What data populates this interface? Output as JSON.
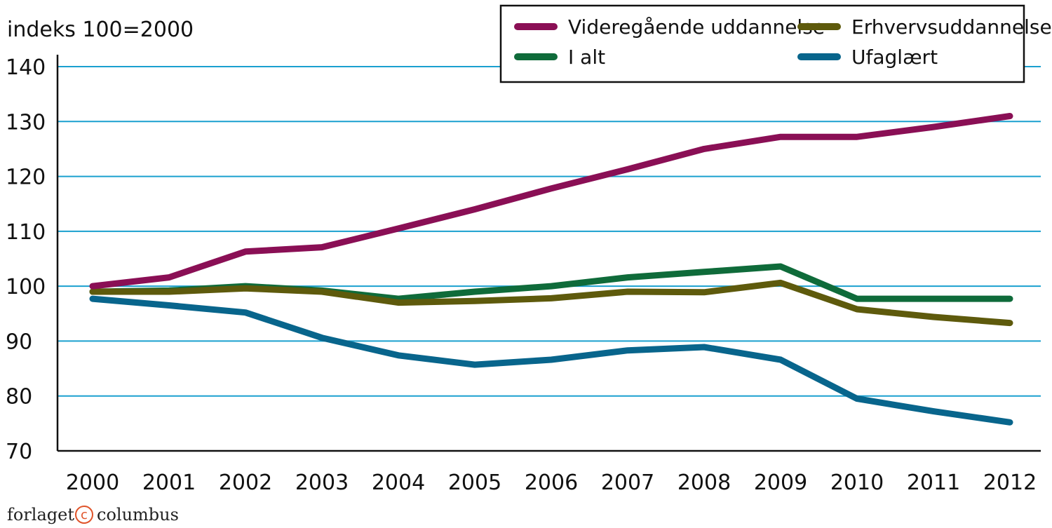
{
  "chart_data": {
    "type": "line",
    "y_unit_label": "indeks 100=2000",
    "x": [
      "2000",
      "2001",
      "2002",
      "2003",
      "2004",
      "2005",
      "2006",
      "2007",
      "2008",
      "2009",
      "2010",
      "2011",
      "2012"
    ],
    "ylim": [
      70,
      140
    ],
    "yticks": [
      "70",
      "80",
      "90",
      "100",
      "110",
      "120",
      "130",
      "140"
    ],
    "grid": true,
    "legend_position": "top-right",
    "series": [
      {
        "name": "Videregående uddannelse",
        "color": "#8a0f55",
        "values": [
          100,
          101.6,
          106.3,
          107.1,
          110.5,
          114,
          117.8,
          121.3,
          125,
          127.2,
          127.2,
          129,
          131
        ]
      },
      {
        "name": "I alt",
        "color": "#0f6b3a",
        "values": [
          99,
          99.2,
          100,
          99.2,
          97.7,
          99,
          100,
          101.6,
          102.6,
          103.6,
          97.7,
          97.7,
          97.7
        ]
      },
      {
        "name": "Erhvervsuddannelse",
        "color": "#5e5a0c",
        "values": [
          99,
          99,
          99.6,
          99,
          97,
          97.3,
          97.8,
          99,
          98.9,
          100.6,
          95.8,
          94.4,
          93.3
        ]
      },
      {
        "name": "Ufaglært",
        "color": "#08658c",
        "values": [
          97.7,
          96.5,
          95.2,
          90.6,
          87.4,
          85.7,
          86.6,
          88.3,
          88.9,
          86.6,
          79.5,
          77.2,
          75.2
        ]
      }
    ]
  },
  "credit": {
    "left": "forlaget",
    "mark": "c",
    "right": "columbus"
  }
}
